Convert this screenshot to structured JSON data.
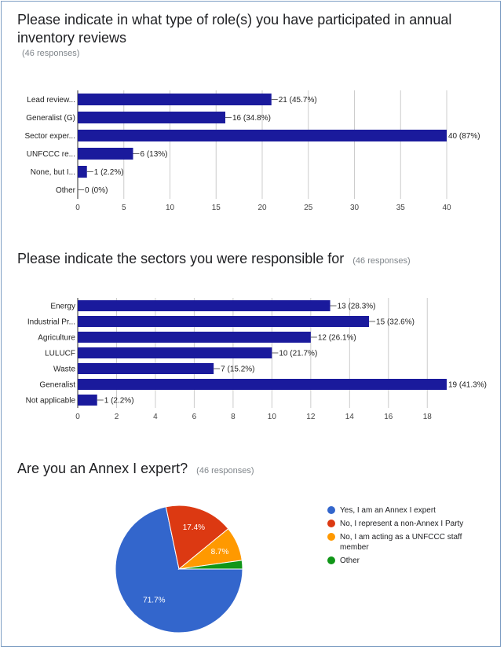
{
  "questions": [
    {
      "title": "Please indicate in what type of role(s) you have participated in annual inventory reviews",
      "responses": "(46 responses)"
    },
    {
      "title": "Please indicate the sectors you were responsible for",
      "responses": "(46 responses)"
    },
    {
      "title": "Are you an Annex I expert?",
      "responses": "(46 responses)"
    }
  ],
  "chart_data": [
    {
      "type": "bar",
      "orientation": "horizontal",
      "title": "Please indicate in what type of role(s) you have participated in annual inventory reviews",
      "categories": [
        "Lead review...",
        "Generalist (G)",
        "Sector exper...",
        "UNFCCC re...",
        "None, but I...",
        "Other"
      ],
      "values": [
        21,
        16,
        40,
        6,
        1,
        0
      ],
      "value_labels": [
        "21 (45.7%)",
        "16 (34.8%)",
        "40 (87%)",
        "6 (13%)",
        "1 (2.2%)",
        "0 (0%)"
      ],
      "xticks": [
        0,
        5,
        10,
        15,
        20,
        25,
        30,
        35,
        40
      ],
      "xlim": [
        0,
        40
      ],
      "color": "#1a1a9c",
      "grid": true
    },
    {
      "type": "bar",
      "orientation": "horizontal",
      "title": "Please indicate the sectors you were responsible for",
      "categories": [
        "Energy",
        "Industrial Pr...",
        "Agriculture",
        "LULUCF",
        "Waste",
        "Generalist",
        "Not applicable"
      ],
      "values": [
        13,
        15,
        12,
        10,
        7,
        19,
        1
      ],
      "value_labels": [
        "13 (28.3%)",
        "15 (32.6%)",
        "12 (26.1%)",
        "10 (21.7%)",
        "7 (15.2%)",
        "19 (41.3%)",
        "1 (2.2%)"
      ],
      "xticks": [
        0,
        2,
        4,
        6,
        8,
        10,
        12,
        14,
        16,
        18
      ],
      "xlim": [
        0,
        19
      ],
      "color": "#1a1a9c",
      "grid": true
    },
    {
      "type": "pie",
      "title": "Are you an Annex I expert?",
      "labels": [
        "Yes, I am an Annex I expert",
        "No, I represent a non-Annex I Party",
        "No, I am acting as a UNFCCC staff member",
        "Other"
      ],
      "values": [
        71.7,
        17.4,
        8.7,
        2.2
      ],
      "slice_labels": [
        "71.7%",
        "17.4%",
        "8.7%",
        ""
      ],
      "colors": [
        "#3366cc",
        "#dc3912",
        "#ff9900",
        "#109618"
      ],
      "legend_position": "right"
    }
  ]
}
